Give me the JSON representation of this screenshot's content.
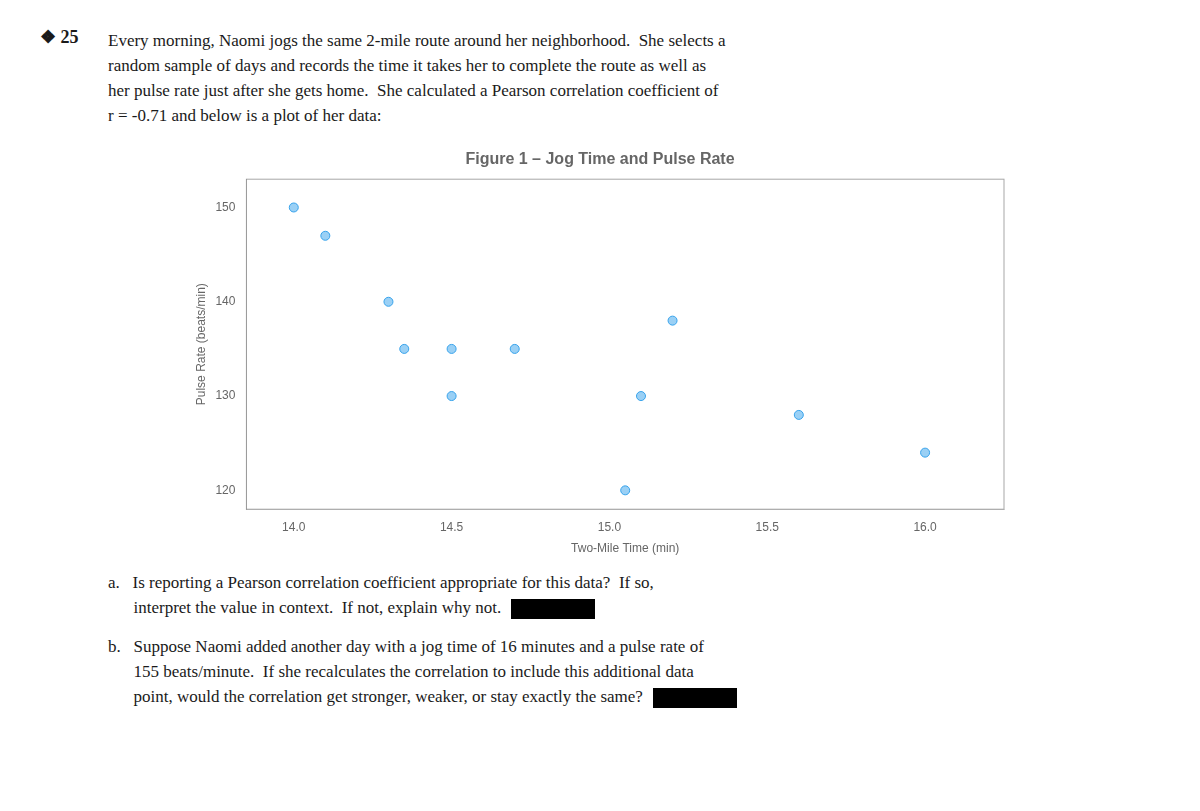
{
  "chart_data": {
    "type": "scatter",
    "title": "Figure 1 – Jog Time and Pulse Rate",
    "xlabel": "Two-Mile Time (min)",
    "ylabel": "Pulse Rate (beats/min)",
    "x": [
      14.0,
      14.1,
      14.3,
      14.35,
      14.5,
      14.5,
      14.7,
      15.05,
      15.1,
      15.2,
      15.6,
      16.0
    ],
    "values": [
      150,
      147,
      140,
      135,
      135,
      130,
      135,
      120,
      130,
      138,
      128,
      124
    ],
    "xlim": [
      13.85,
      16.25
    ],
    "ylim": [
      118,
      153
    ],
    "xticks": [
      {
        "value": 14.0,
        "label": "14.0"
      },
      {
        "value": 14.5,
        "label": "14.5"
      },
      {
        "value": 15.0,
        "label": "15.0"
      },
      {
        "value": 15.5,
        "label": "15.5"
      },
      {
        "value": 16.0,
        "label": "16.0"
      }
    ],
    "yticks": [
      120,
      130,
      140,
      150
    ],
    "marker": "circle",
    "grid": false,
    "page_mark": "❖ 25",
    "text_above": [
      "Every morning, Naomi jogs the same 2-mile route around her neighborhood.  She selects a",
      "random sample of days and records the time it takes her to complete the route as well as",
      "her pulse rate just after she gets home.  She calculated a Pearson correlation coefficient of",
      "r = -0.71 and below is a plot of her data:"
    ],
    "text_below": [
      [
        "a.   Is reporting a Pearson correlation coefficient appropriate for this data?  If so,",
        "      interpret the value in context.  If not, explain why not."
      ],
      [
        "b.   Suppose Naomi added another day with a jog time of 16 minutes and a pulse rate of",
        "      155 beats/minute.  If she recalculates the correlation to include this additional data",
        "      point, would the correlation get stronger, weaker, or stay exactly the same?"
      ]
    ]
  }
}
